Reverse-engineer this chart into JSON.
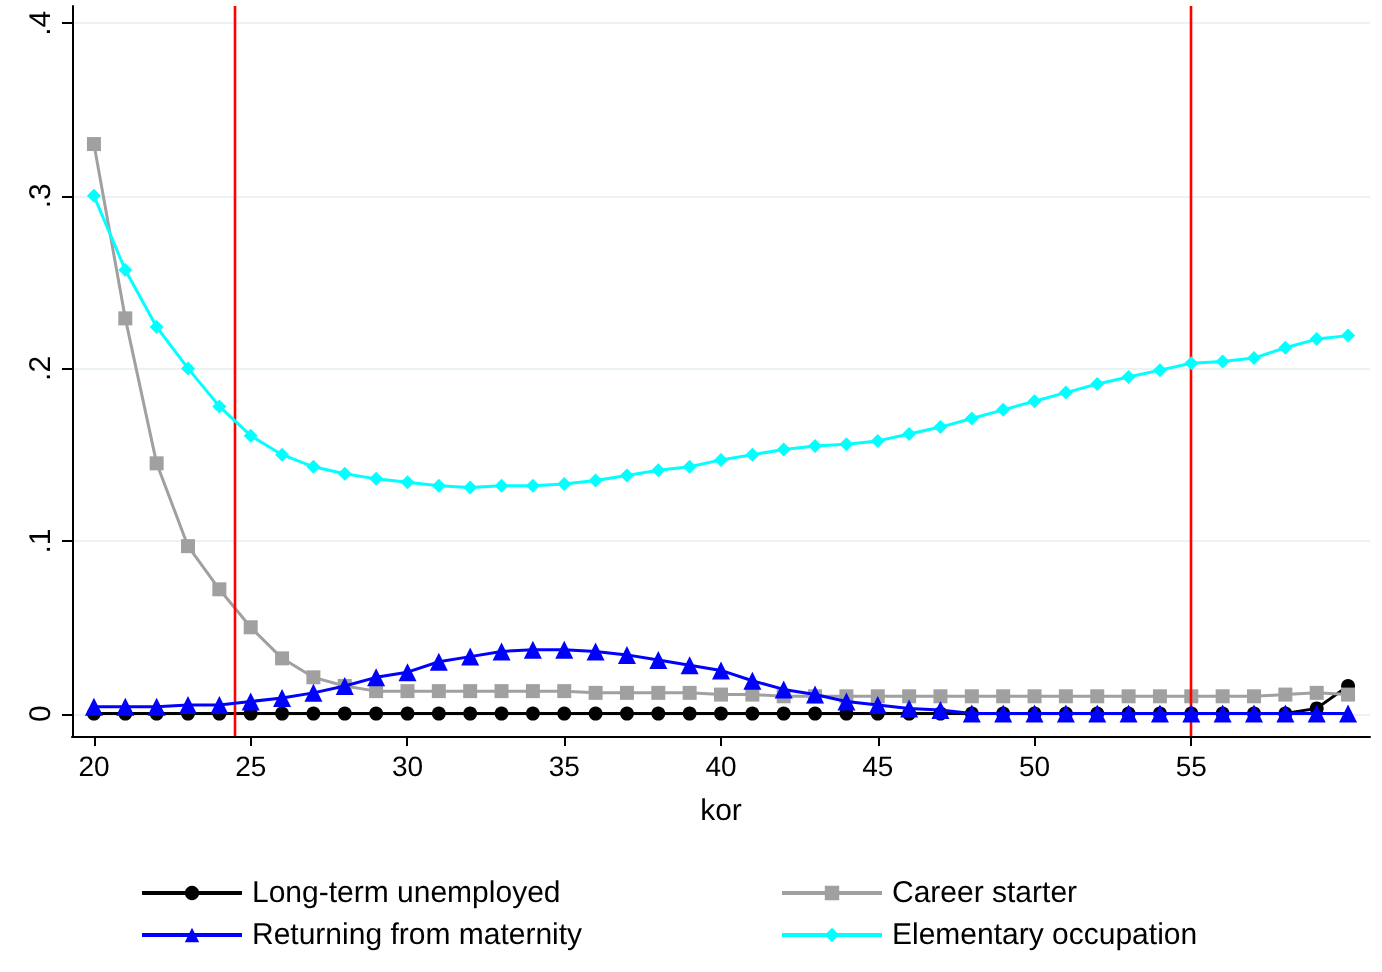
{
  "chart_data": {
    "type": "line",
    "xlabel": "kor",
    "x": [
      20,
      21,
      22,
      23,
      24,
      25,
      26,
      27,
      28,
      29,
      30,
      31,
      32,
      33,
      34,
      35,
      36,
      37,
      38,
      39,
      40,
      41,
      42,
      43,
      44,
      45,
      46,
      47,
      48,
      49,
      50,
      51,
      52,
      53,
      54,
      55,
      56,
      57,
      58,
      59,
      60
    ],
    "series": [
      {
        "name": "Long-term unemployed",
        "color": "#000000",
        "marker": "circle",
        "values": [
          0,
          0,
          0,
          0,
          0,
          0,
          0,
          0,
          0,
          0,
          0,
          0,
          0,
          0,
          0,
          0,
          0,
          0,
          0,
          0,
          0,
          0,
          0,
          0,
          0,
          0,
          0,
          0,
          0,
          0,
          0,
          0,
          0,
          0,
          0,
          0,
          0,
          0,
          0,
          0.003,
          0.016
        ]
      },
      {
        "name": "Career starter",
        "color": "#a0a0a0",
        "marker": "square",
        "values": [
          0.33,
          0.229,
          0.145,
          0.097,
          0.072,
          0.05,
          0.032,
          0.021,
          0.016,
          0.013,
          0.013,
          0.013,
          0.013,
          0.013,
          0.013,
          0.013,
          0.012,
          0.012,
          0.012,
          0.012,
          0.011,
          0.011,
          0.01,
          0.01,
          0.01,
          0.01,
          0.01,
          0.01,
          0.01,
          0.01,
          0.01,
          0.01,
          0.01,
          0.01,
          0.01,
          0.01,
          0.01,
          0.01,
          0.011,
          0.012,
          0.011
        ]
      },
      {
        "name": "Returning from maternity",
        "color": "#0000ff",
        "marker": "triangle",
        "values": [
          0.004,
          0.004,
          0.004,
          0.005,
          0.005,
          0.007,
          0.009,
          0.012,
          0.016,
          0.021,
          0.024,
          0.03,
          0.033,
          0.036,
          0.037,
          0.037,
          0.036,
          0.034,
          0.031,
          0.028,
          0.025,
          0.019,
          0.014,
          0.011,
          0.007,
          0.005,
          0.003,
          0.002,
          0,
          0,
          0,
          0,
          0,
          0,
          0,
          0,
          0,
          0,
          0,
          0,
          0
        ]
      },
      {
        "name": "Elementary occupation",
        "color": "#00ffff",
        "marker": "diamond",
        "values": [
          0.3,
          0.257,
          0.224,
          0.2,
          0.178,
          0.161,
          0.15,
          0.143,
          0.139,
          0.136,
          0.134,
          0.132,
          0.131,
          0.132,
          0.132,
          0.133,
          0.135,
          0.138,
          0.141,
          0.143,
          0.147,
          0.15,
          0.153,
          0.155,
          0.156,
          0.158,
          0.162,
          0.166,
          0.171,
          0.176,
          0.181,
          0.186,
          0.191,
          0.195,
          0.199,
          0.203,
          0.204,
          0.206,
          0.212,
          0.217,
          0.219
        ]
      }
    ],
    "xlim": [
      19.3,
      60.7
    ],
    "xticks": [
      20,
      25,
      30,
      35,
      40,
      45,
      50,
      55
    ],
    "ylim": [
      -0.013,
      0.41
    ],
    "yticks": [
      {
        "value": 0,
        "label": "0"
      },
      {
        "value": 0.1,
        "label": ".1"
      },
      {
        "value": 0.2,
        "label": ".2"
      },
      {
        "value": 0.3,
        "label": ".3"
      },
      {
        "value": 0.4,
        "label": ".4"
      }
    ],
    "ref_lines": [
      {
        "axis": "x",
        "value": 24.5,
        "color": "#ff0000"
      },
      {
        "axis": "x",
        "value": 55,
        "color": "#ff0000"
      }
    ],
    "grid": "y",
    "legend": "bottom"
  }
}
